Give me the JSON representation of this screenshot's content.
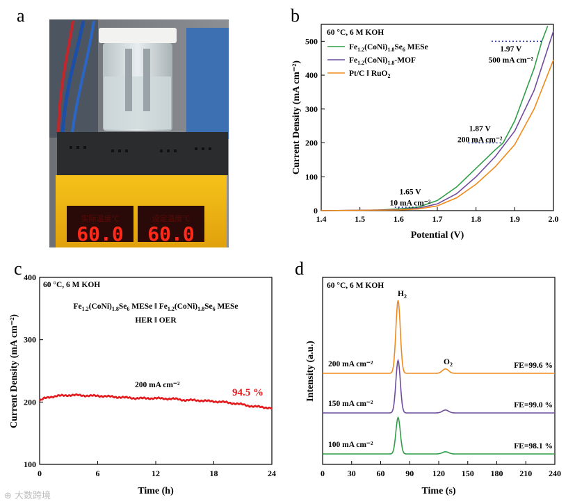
{
  "panels": {
    "a": "a",
    "b": "b",
    "c": "c",
    "d": "d"
  },
  "photo": {
    "display_left": "60.0",
    "display_right": "60.0",
    "label_left": "实际温度℃",
    "label_right": "设定温度℃"
  },
  "watermark": "大数跨境",
  "colors": {
    "green": "#2e9e47",
    "purple": "#6f4a9d",
    "orange": "#f08a1c",
    "red": "#e3191c",
    "dots": "#1a2a9a"
  },
  "chart_data": [
    {
      "id": "b",
      "type": "line",
      "condition": "60 °C, 6 M KOH",
      "xlabel": "Potential (V)",
      "ylabel": "Current Density (mA cm⁻²)",
      "xlim": [
        1.4,
        2.0
      ],
      "ylim": [
        0,
        550
      ],
      "xticks": [
        "1.4",
        "1.5",
        "1.6",
        "1.7",
        "1.8",
        "1.9",
        "2.0"
      ],
      "yticks": [
        "0",
        "100",
        "200",
        "300",
        "400",
        "500"
      ],
      "legend": [
        "Fe1.2(CoNi)1.8Se6 MESe",
        "Fe1.2(CoNi)1.8-MOF",
        "Pt/C ǁ RuO2"
      ],
      "series": [
        {
          "name": "Fe1.2(CoNi)1.8Se6 MESe",
          "x": [
            1.4,
            1.5,
            1.55,
            1.6,
            1.65,
            1.7,
            1.75,
            1.8,
            1.85,
            1.87,
            1.9,
            1.95,
            1.97,
            1.985
          ],
          "y": [
            0,
            1,
            2,
            5,
            10,
            30,
            70,
            125,
            180,
            200,
            265,
            420,
            500,
            545
          ]
        },
        {
          "name": "Fe1.2(CoNi)1.8-MOF",
          "x": [
            1.4,
            1.5,
            1.6,
            1.65,
            1.7,
            1.75,
            1.8,
            1.85,
            1.9,
            1.95,
            2.0
          ],
          "y": [
            0,
            1,
            3,
            7,
            20,
            50,
            100,
            160,
            235,
            355,
            530
          ]
        },
        {
          "name": "Pt/C ǁ RuO2",
          "x": [
            1.4,
            1.5,
            1.6,
            1.65,
            1.7,
            1.75,
            1.8,
            1.85,
            1.9,
            1.95,
            2.0
          ],
          "y": [
            0,
            1,
            2,
            5,
            14,
            38,
            78,
            130,
            195,
            300,
            445
          ]
        }
      ],
      "annotations": [
        {
          "lines": [
            "1.97 V",
            "500 mA cm⁻²"
          ],
          "x": 1.97,
          "y": 500
        },
        {
          "lines": [
            "1.87 V",
            "200 mA cm⁻²"
          ],
          "x": 1.87,
          "y": 200
        },
        {
          "lines": [
            "1.65 V",
            "10 mA cm⁻²"
          ],
          "x": 1.65,
          "y": 10
        }
      ]
    },
    {
      "id": "c",
      "type": "line",
      "condition": "60 °C, 6 M KOH",
      "title_line1": "Fe1.2(CoNi)1.8Se6 MESe ǁ Fe1.2(CoNi)1.8Se6 MESe",
      "title_line2": "HER ǁ OER",
      "xlabel": "Time (h)",
      "ylabel": "Current Density (mA cm⁻²)",
      "xlim": [
        0,
        24
      ],
      "ylim": [
        100,
        400
      ],
      "xticks": [
        "0",
        "6",
        "12",
        "18",
        "24"
      ],
      "yticks": [
        "100",
        "200",
        "300",
        "400"
      ],
      "label": "200 mA cm⁻²",
      "retention": "94.5 %",
      "series": [
        {
          "name": "stability",
          "x": [
            0,
            0.5,
            1,
            2,
            3,
            4,
            5,
            6,
            8,
            10,
            12,
            14,
            15,
            16,
            18,
            19,
            20,
            21,
            22,
            23,
            24
          ],
          "y": [
            202,
            206,
            208,
            210,
            211,
            211,
            210,
            210,
            208,
            206,
            206,
            205,
            203,
            203,
            201,
            200,
            198,
            196,
            193,
            192,
            190
          ]
        }
      ]
    },
    {
      "id": "d",
      "type": "line",
      "condition": "60 °C, 6 M KOH",
      "xlabel": "Time (s)",
      "ylabel": "Intensity (a.u.)",
      "xlim": [
        0,
        240
      ],
      "xticks": [
        "0",
        "30",
        "60",
        "90",
        "120",
        "150",
        "180",
        "210",
        "240"
      ],
      "peaks": [
        "H2",
        "O2"
      ],
      "series": [
        {
          "name": "200 mA cm⁻²",
          "fe": "FE=99.6 %",
          "h2_height": 1.0,
          "o2_height": 0.06
        },
        {
          "name": "150 mA cm⁻²",
          "fe": "FE=99.0 %",
          "h2_height": 0.72,
          "o2_height": 0.04
        },
        {
          "name": "100 mA cm⁻²",
          "fe": "FE=98.1 %",
          "h2_height": 0.5,
          "o2_height": 0.03
        }
      ]
    }
  ]
}
